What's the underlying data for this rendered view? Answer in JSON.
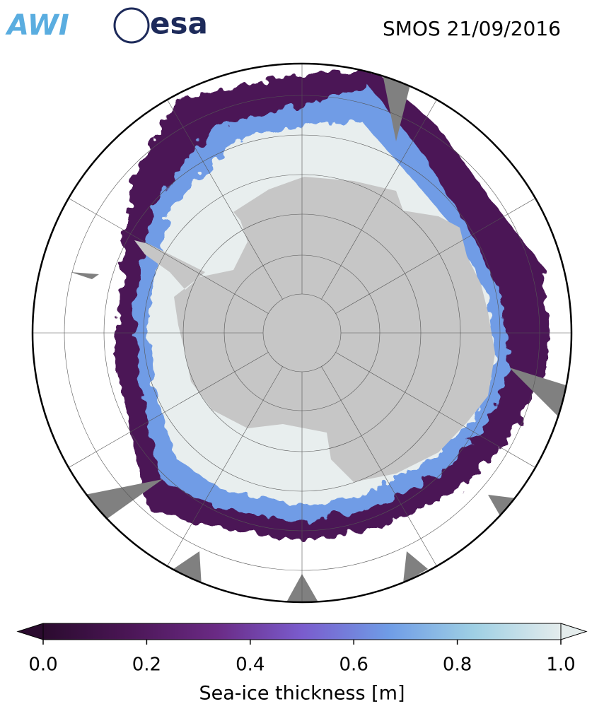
{
  "header": {
    "logos": [
      "AWI",
      "esa"
    ],
    "title": "SMOS 21/09/2016"
  },
  "colorbar": {
    "label": "Sea-ice thickness [m]",
    "lim": [
      0,
      1
    ],
    "ticks": [
      {
        "value": 0,
        "label": "0.0"
      },
      {
        "value": 0.2,
        "label": "0.2"
      },
      {
        "value": 0.4,
        "label": "0.4"
      },
      {
        "value": 0.6,
        "label": "0.6"
      },
      {
        "value": 0.8,
        "label": "0.8"
      },
      {
        "value": 1,
        "label": "1.0"
      }
    ],
    "colors": [
      "#2b0b2f",
      "#4b1656",
      "#6a2a84",
      "#7a5ccd",
      "#6f9ce6",
      "#9fd0e4",
      "#e4ecec"
    ]
  }
}
